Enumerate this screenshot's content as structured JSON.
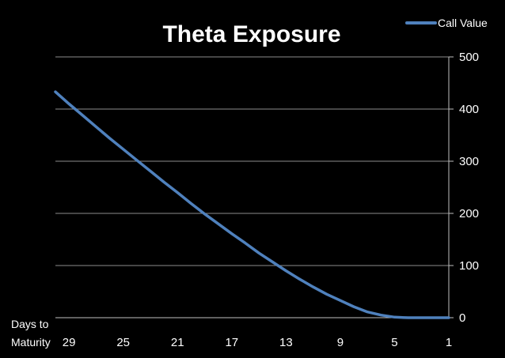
{
  "chart_data": {
    "type": "line",
    "title": "Theta Exposure",
    "xlabel_line1": "Days to",
    "xlabel_line2": "Maturity",
    "ylabel": "",
    "x_reversed": true,
    "xlim": [
      30,
      1
    ],
    "ylim": [
      0,
      500
    ],
    "y_ticks": [
      0,
      100,
      200,
      300,
      400,
      500
    ],
    "x_ticks": [
      29,
      25,
      21,
      17,
      13,
      9,
      5,
      1
    ],
    "grid": "horizontal",
    "legend": "top-right",
    "series": [
      {
        "name": "Call Value",
        "color": "#4F81BD",
        "x": [
          30,
          29,
          28,
          27,
          26,
          25,
          24,
          23,
          22,
          21,
          20,
          19,
          18,
          17,
          16,
          15,
          14,
          13,
          12,
          11,
          10,
          9,
          8,
          7,
          6,
          5,
          4,
          3,
          2,
          1
        ],
        "values": [
          433,
          410,
          388,
          366,
          344,
          323,
          302,
          281,
          260,
          240,
          219,
          199,
          180,
          161,
          143,
          124,
          107,
          90,
          74,
          59,
          45,
          33,
          21,
          11,
          5,
          1,
          0,
          0,
          0,
          0
        ]
      }
    ]
  }
}
